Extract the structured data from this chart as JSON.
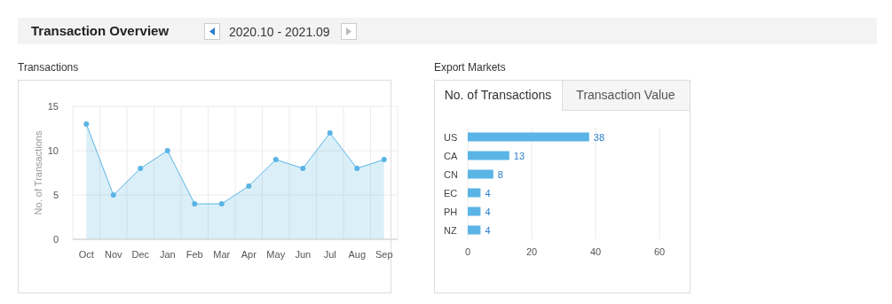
{
  "chart_data": [
    {
      "type": "other",
      "title": "Transaction Overview",
      "annotations": [
        "2020.10 - 2021.09"
      ]
    },
    {
      "type": "area",
      "title": "Transactions",
      "ylabel": "No. of Transactions",
      "categories": [
        "Oct",
        "Nov",
        "Dec",
        "Jan",
        "Feb",
        "Mar",
        "Apr",
        "May",
        "Jun",
        "Jul",
        "Aug",
        "Sep"
      ],
      "series": [
        {
          "color": "#5ab4e5",
          "values": [
            13,
            5,
            8,
            10,
            4,
            4,
            6,
            9,
            8,
            12,
            8,
            9
          ]
        }
      ],
      "ylim": [
        0,
        15
      ],
      "yticks": [
        0,
        5,
        10,
        15
      ],
      "grid": true,
      "marker": "circle"
    },
    {
      "type": "bar",
      "orientation": "horizontal",
      "title": "Export Markets",
      "annotations": [
        "No. of Transactions",
        "Transaction Value"
      ],
      "categories": [
        "US",
        "CA",
        "CN",
        "EC",
        "PH",
        "NZ"
      ],
      "series": [
        {
          "color": "#5ab4e5",
          "values": [
            38,
            13,
            8,
            4,
            4,
            4
          ]
        }
      ],
      "xlim": [
        0,
        60
      ],
      "xticks": [
        0,
        20,
        40,
        60
      ],
      "grid": "x",
      "data_labels": true
    }
  ]
}
